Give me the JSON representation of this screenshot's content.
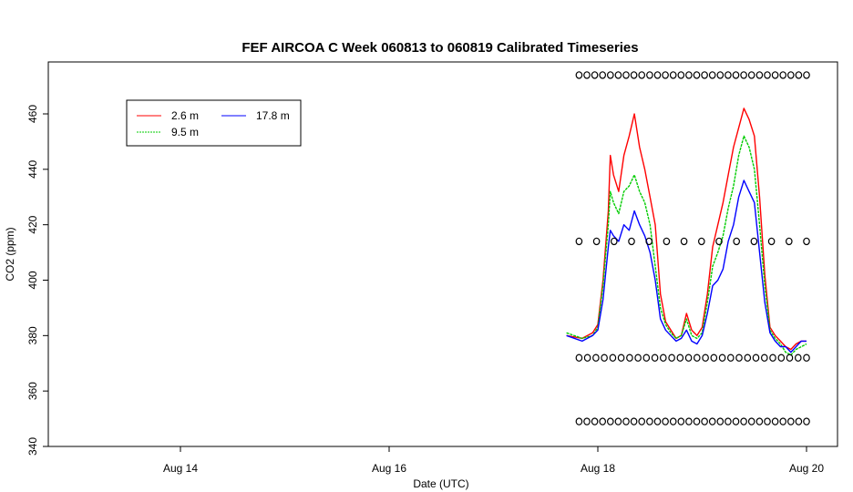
{
  "chart_data": {
    "type": "line",
    "title": "FEF AIRCOA C  Week 060813 to 060819  Calibrated Timeseries",
    "xlabel": "Date (UTC)",
    "ylabel": "CO2 (ppm)",
    "xlim": [
      12.75,
      20.15
    ],
    "ylim": [
      340,
      480
    ],
    "xticks": [
      {
        "value": 14,
        "label": "Aug 14"
      },
      {
        "value": 16,
        "label": "Aug 16"
      },
      {
        "value": 18,
        "label": "Aug 18"
      },
      {
        "value": 20,
        "label": "Aug 20"
      }
    ],
    "yticks": [
      340,
      360,
      380,
      400,
      420,
      440,
      460
    ],
    "legend": {
      "position": "top-left",
      "entries": [
        {
          "label": "2.6 m",
          "color": "#ff0000"
        },
        {
          "label": "9.5 m",
          "color": "#00cc00"
        },
        {
          "label": "17.8 m",
          "color": "#0000ff"
        }
      ]
    },
    "series": [
      {
        "name": "2.6 m",
        "color": "#ff0000",
        "x": [
          17.7,
          17.85,
          17.95,
          18.0,
          18.05,
          18.1,
          18.12,
          18.15,
          18.2,
          18.25,
          18.3,
          18.35,
          18.4,
          18.45,
          18.5,
          18.55,
          18.6,
          18.65,
          18.7,
          18.75,
          18.8,
          18.85,
          18.9,
          18.95,
          19.0,
          19.05,
          19.1,
          19.15,
          19.2,
          19.25,
          19.3,
          19.35,
          19.4,
          19.45,
          19.5,
          19.55,
          19.6,
          19.65,
          19.7,
          19.75,
          19.8,
          19.85,
          19.9,
          19.95,
          20.0
        ],
        "y": [
          380,
          379,
          381,
          384,
          400,
          425,
          445,
          438,
          432,
          445,
          452,
          460,
          448,
          440,
          430,
          420,
          395,
          385,
          382,
          379,
          380,
          388,
          382,
          380,
          383,
          395,
          412,
          420,
          428,
          438,
          448,
          455,
          462,
          458,
          452,
          430,
          402,
          383,
          380,
          378,
          376,
          375,
          377,
          378,
          378
        ]
      },
      {
        "name": "9.5 m",
        "color": "#00cc00",
        "x": [
          17.7,
          17.85,
          17.95,
          18.0,
          18.05,
          18.1,
          18.12,
          18.15,
          18.2,
          18.25,
          18.3,
          18.35,
          18.4,
          18.45,
          18.5,
          18.55,
          18.6,
          18.65,
          18.7,
          18.75,
          18.8,
          18.85,
          18.9,
          18.95,
          19.0,
          19.05,
          19.1,
          19.15,
          19.2,
          19.25,
          19.3,
          19.35,
          19.4,
          19.45,
          19.5,
          19.55,
          19.6,
          19.65,
          19.7,
          19.75,
          19.8,
          19.85,
          19.9,
          19.95,
          20.0
        ],
        "y": [
          381,
          379,
          380,
          383,
          398,
          420,
          432,
          428,
          424,
          432,
          434,
          438,
          432,
          428,
          420,
          405,
          390,
          384,
          381,
          379,
          380,
          386,
          380,
          379,
          381,
          392,
          405,
          410,
          416,
          426,
          434,
          445,
          452,
          448,
          440,
          420,
          398,
          382,
          379,
          377,
          374,
          373,
          375,
          376,
          377
        ]
      },
      {
        "name": "17.8 m",
        "color": "#0000ff",
        "x": [
          17.7,
          17.85,
          17.95,
          18.0,
          18.05,
          18.1,
          18.12,
          18.15,
          18.2,
          18.25,
          18.3,
          18.35,
          18.4,
          18.45,
          18.5,
          18.55,
          18.6,
          18.65,
          18.7,
          18.75,
          18.8,
          18.85,
          18.9,
          18.95,
          19.0,
          19.05,
          19.1,
          19.15,
          19.2,
          19.25,
          19.3,
          19.35,
          19.4,
          19.45,
          19.5,
          19.55,
          19.6,
          19.65,
          19.7,
          19.75,
          19.8,
          19.85,
          19.9,
          19.95,
          20.0
        ],
        "y": [
          380,
          378,
          380,
          382,
          393,
          412,
          418,
          416,
          414,
          420,
          418,
          425,
          420,
          416,
          410,
          400,
          386,
          382,
          380,
          378,
          379,
          382,
          378,
          377,
          380,
          388,
          398,
          400,
          404,
          414,
          420,
          430,
          436,
          432,
          428,
          410,
          392,
          381,
          378,
          376,
          376,
          374,
          376,
          378,
          378
        ]
      }
    ],
    "markers": {
      "symbol": "o",
      "color": "#000000",
      "x_start": 17.82,
      "x_end": 20.0,
      "rows": [
        474,
        414,
        372,
        349
      ],
      "counts": [
        30,
        14,
        28,
        30
      ]
    }
  }
}
